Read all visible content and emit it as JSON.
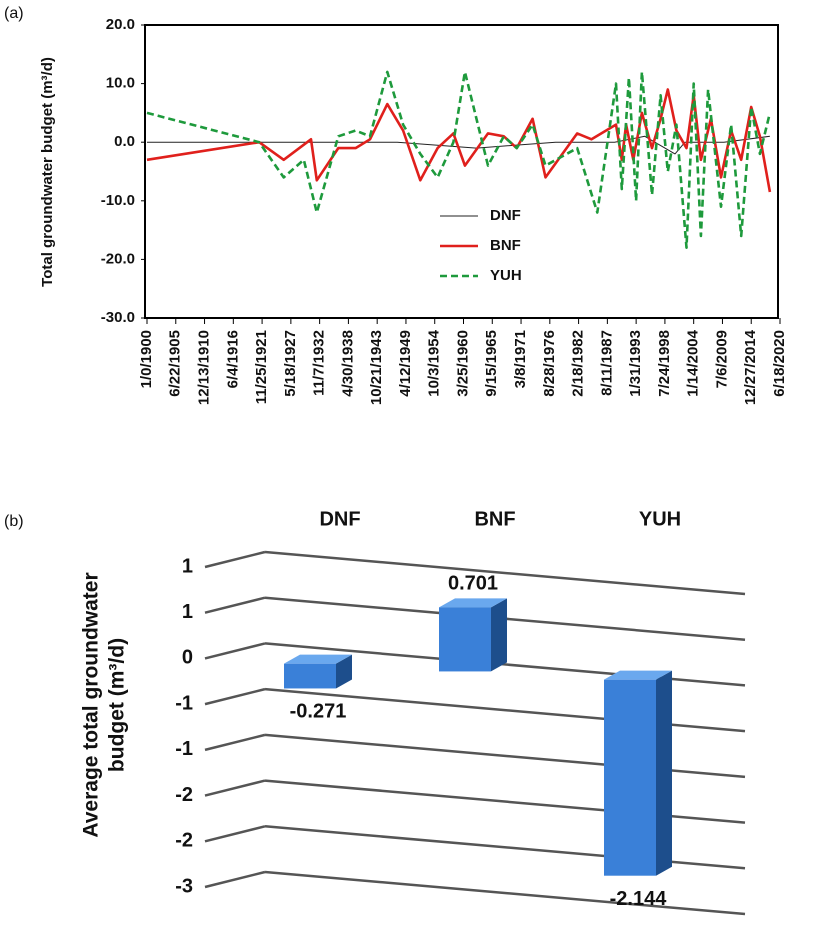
{
  "chart_data": [
    {
      "type": "line",
      "panel_label": "(a)",
      "y_label": "Total groundwater budget (m³/d)",
      "xlim": [
        0,
        44000
      ],
      "xticks": [
        {
          "value": 0,
          "label": "1/0/1900"
        },
        {
          "value": 2000,
          "label": "6/22/1905"
        },
        {
          "value": 4000,
          "label": "12/13/1910"
        },
        {
          "value": 6000,
          "label": "6/4/1916"
        },
        {
          "value": 8000,
          "label": "11/25/1921"
        },
        {
          "value": 10000,
          "label": "5/18/1927"
        },
        {
          "value": 12000,
          "label": "11/7/1932"
        },
        {
          "value": 14000,
          "label": "4/30/1938"
        },
        {
          "value": 16000,
          "label": "10/21/1943"
        },
        {
          "value": 18000,
          "label": "4/12/1949"
        },
        {
          "value": 20000,
          "label": "10/3/1954"
        },
        {
          "value": 22000,
          "label": "3/25/1960"
        },
        {
          "value": 24000,
          "label": "9/15/1965"
        },
        {
          "value": 26000,
          "label": "3/8/1971"
        },
        {
          "value": 28000,
          "label": "8/28/1976"
        },
        {
          "value": 30000,
          "label": "2/18/1982"
        },
        {
          "value": 32000,
          "label": "8/11/1987"
        },
        {
          "value": 34000,
          "label": "1/31/1993"
        },
        {
          "value": 36000,
          "label": "7/24/1998"
        },
        {
          "value": 38000,
          "label": "1/14/2004"
        },
        {
          "value": 40000,
          "label": "7/6/2009"
        },
        {
          "value": 42000,
          "label": "12/27/2014"
        },
        {
          "value": 44000,
          "label": "6/18/2020"
        }
      ],
      "ylim": [
        -30,
        20
      ],
      "yticks": [
        {
          "value": 20,
          "label": "20.0"
        },
        {
          "value": 10,
          "label": "10.0"
        },
        {
          "value": 0,
          "label": "0.0"
        },
        {
          "value": -10,
          "label": "-10.0"
        },
        {
          "value": -20,
          "label": "-20.0"
        },
        {
          "value": -30,
          "label": "-30.0"
        }
      ],
      "series": [
        {
          "name": "DNF",
          "color": "#222222",
          "dash": "none",
          "width": 1,
          "x": [
            0,
            10500,
            17400,
            22900,
            28400,
            32500,
            34600,
            36700,
            37400,
            38100,
            40100,
            43300
          ],
          "values": [
            0,
            0,
            0,
            -1,
            0,
            0,
            1,
            -2,
            0,
            0,
            0,
            1
          ]
        },
        {
          "name": "BNF",
          "color": "#e0201c",
          "dash": "none",
          "width": 2.6,
          "x": [
            0,
            7800,
            9500,
            11400,
            11800,
            13300,
            14500,
            15500,
            16700,
            17800,
            19000,
            20200,
            21300,
            22100,
            23700,
            24800,
            25700,
            26800,
            27700,
            29900,
            30900,
            32600,
            33000,
            33300,
            33800,
            34400,
            35100,
            35700,
            36200,
            36800,
            37500,
            38000,
            38500,
            39200,
            39900,
            40600,
            41300,
            42000,
            42600,
            43300
          ],
          "values": [
            -3,
            0,
            -3,
            0.5,
            -6.5,
            -1,
            -1,
            0.5,
            6.5,
            2,
            -6.5,
            -1,
            1.5,
            -4,
            1.5,
            1,
            -1,
            4,
            -6,
            1.5,
            0.5,
            3,
            -3,
            3,
            -3,
            5,
            -1,
            4,
            9,
            2,
            -1,
            8,
            -3,
            4,
            -6,
            2,
            -3,
            6,
            1,
            -8.5
          ]
        },
        {
          "name": "YUH",
          "color": "#1e9a3c",
          "dash": "7 4",
          "width": 2.6,
          "x": [
            0,
            7800,
            9500,
            10900,
            11800,
            13300,
            14500,
            15500,
            16700,
            17800,
            19000,
            20200,
            21300,
            22100,
            23700,
            24800,
            25700,
            26800,
            27700,
            29900,
            31300,
            32600,
            33000,
            33500,
            34000,
            34400,
            35100,
            35700,
            36200,
            36800,
            37500,
            38000,
            38500,
            39000,
            39900,
            40600,
            41300,
            42000,
            42600,
            43300
          ],
          "values": [
            5,
            0,
            -6,
            -3,
            -12,
            1,
            2,
            1,
            12,
            3,
            -2,
            -6,
            0,
            12,
            -4,
            1,
            -1,
            3,
            -4,
            -1,
            -12,
            10,
            -8,
            11,
            -10,
            12,
            -9,
            8,
            -5,
            3,
            -18,
            10,
            -16,
            9,
            -11,
            3,
            -16,
            6,
            -2,
            5
          ]
        }
      ]
    },
    {
      "type": "bar3d",
      "panel_label": "(b)",
      "y_label": [
        "Average total groundwater",
        "budget (m³/d)"
      ],
      "categories": [
        "DNF",
        "BNF",
        "YUH"
      ],
      "values": [
        -0.271,
        0.701,
        -2.144
      ],
      "color": "#3a80d8",
      "ylim": [
        -2.5,
        1
      ],
      "yticks": [
        {
          "value": 1,
          "label": "1"
        },
        {
          "value": 0.5,
          "label": "1"
        },
        {
          "value": 0,
          "label": "0"
        },
        {
          "value": -0.5,
          "label": "-1"
        },
        {
          "value": -1,
          "label": "-1"
        },
        {
          "value": -1.5,
          "label": "-2"
        },
        {
          "value": -2,
          "label": "-2"
        },
        {
          "value": -2.5,
          "label": "-3"
        }
      ]
    }
  ]
}
